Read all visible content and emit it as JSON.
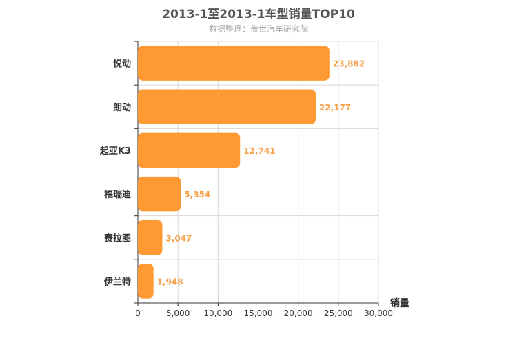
{
  "title": "2013-1至2013-1车型销量TOP10",
  "subtitle": "数据整理：盖世汽车研究院",
  "chart_data": {
    "type": "bar",
    "orientation": "horizontal",
    "title": "2013-1至2013-1车型销量TOP10",
    "subtitle": "数据整理：盖世汽车研究院",
    "categories": [
      "悦动",
      "朗动",
      "起亚K3",
      "福瑞迪",
      "赛拉图",
      "伊兰特"
    ],
    "values": [
      23882,
      22177,
      12741,
      5354,
      3047,
      1948
    ],
    "value_labels": [
      "23,882",
      "22,177",
      "12,741",
      "5,354",
      "3,047",
      "1,948"
    ],
    "xlabel": "销量",
    "ylabel": "",
    "xlim": [
      0,
      30000
    ],
    "xticks": [
      0,
      5000,
      10000,
      15000,
      20000,
      25000,
      30000
    ],
    "xtick_labels": [
      "0",
      "5,000",
      "10,000",
      "15,000",
      "20,000",
      "25,000",
      "30,000"
    ],
    "grid": true,
    "bar_color": "#ff9a33",
    "label_color": "#f5a14a"
  }
}
